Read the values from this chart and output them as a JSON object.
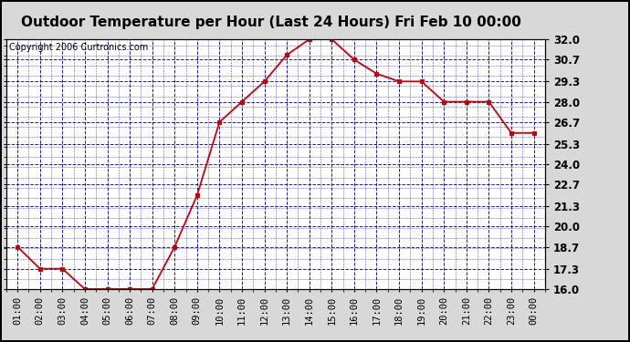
{
  "title": "Outdoor Temperature per Hour (Last 24 Hours) Fri Feb 10 00:00",
  "copyright": "Copyright 2006 Curtronics.com",
  "hours": [
    "01:00",
    "02:00",
    "03:00",
    "04:00",
    "05:00",
    "06:00",
    "07:00",
    "08:00",
    "09:00",
    "10:00",
    "11:00",
    "12:00",
    "13:00",
    "14:00",
    "15:00",
    "16:00",
    "17:00",
    "18:00",
    "19:00",
    "20:00",
    "21:00",
    "22:00",
    "23:00",
    "00:00"
  ],
  "temps": [
    18.7,
    17.3,
    17.3,
    16.0,
    16.0,
    16.0,
    16.0,
    18.7,
    22.0,
    26.7,
    28.0,
    29.3,
    31.0,
    32.0,
    32.0,
    30.7,
    29.8,
    29.3,
    29.3,
    28.0,
    28.0,
    28.0,
    26.0,
    26.0
  ],
  "ymin": 16.0,
  "ymax": 32.0,
  "yticks": [
    16.0,
    17.3,
    18.7,
    20.0,
    21.3,
    22.7,
    24.0,
    25.3,
    26.7,
    28.0,
    29.3,
    30.7,
    32.0
  ],
  "line_color": "#cc0000",
  "marker_color": "#cc0000",
  "grid_color": "#0000bb",
  "background_color": "#d8d8d8",
  "plot_bg_color": "#ffffff",
  "title_fontsize": 11,
  "copyright_fontsize": 7,
  "tick_fontsize": 8.5,
  "xlabel_fontsize": 7.5
}
